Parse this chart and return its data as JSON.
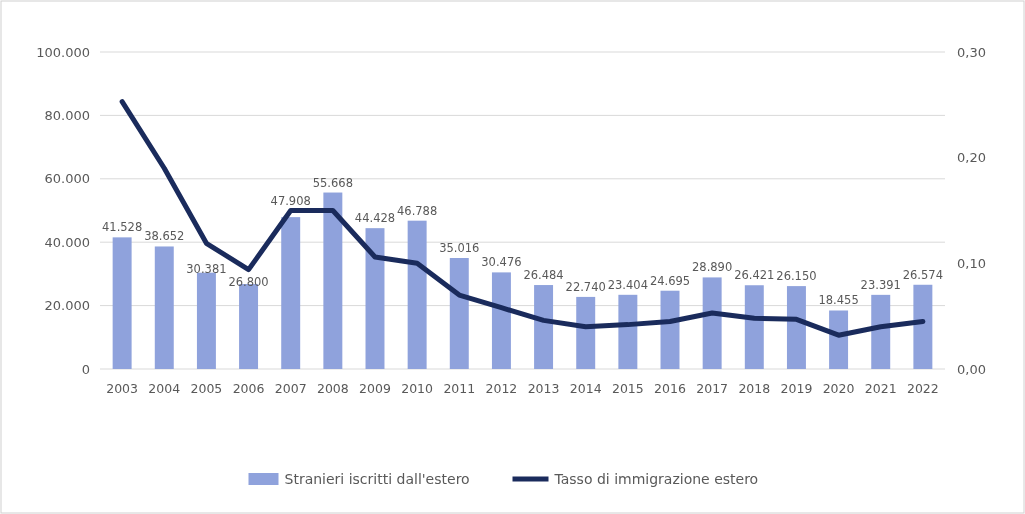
{
  "chart_data": {
    "type": "bar",
    "categories": [
      "2003",
      "2004",
      "2005",
      "2006",
      "2007",
      "2008",
      "2009",
      "2010",
      "2011",
      "2012",
      "2013",
      "2014",
      "2015",
      "2016",
      "2017",
      "2018",
      "2019",
      "2020",
      "2021",
      "2022"
    ],
    "series": [
      {
        "name": "Stranieri iscritti dall'estero",
        "color": "#8fa2dc",
        "values": [
          41528,
          38652,
          30381,
          26800,
          47908,
          55668,
          44428,
          46788,
          35016,
          30476,
          26484,
          22740,
          23404,
          24695,
          28890,
          26421,
          26150,
          18455,
          23391,
          26574
        ],
        "value_labels": [
          "41.528",
          "38.652",
          "30.381",
          "26.800",
          "47.908",
          "55.668",
          "44.428",
          "46.788",
          "35.016",
          "30.476",
          "26.484",
          "22.740",
          "23.404",
          "24.695",
          "28.890",
          "26.421",
          "26.150",
          "18.455",
          "23.391",
          "26.574"
        ]
      },
      {
        "name": "Tasso di immigrazione estero",
        "type": "line",
        "axis": "y2",
        "color": "#1a2b5c",
        "values": [
          0.253,
          0.19,
          0.119,
          0.094,
          0.15,
          0.15,
          0.106,
          0.1,
          0.07,
          0.058,
          0.046,
          0.04,
          0.042,
          0.045,
          0.053,
          0.048,
          0.047,
          0.032,
          0.04,
          0.045
        ]
      }
    ],
    "ylim": [
      0,
      100000
    ],
    "yticks": [
      {
        "value": 0,
        "label": "0"
      },
      {
        "value": 20000,
        "label": "20.000"
      },
      {
        "value": 40000,
        "label": "40.000"
      },
      {
        "value": 60000,
        "label": "60.000"
      },
      {
        "value": 80000,
        "label": "80.000"
      },
      {
        "value": 100000,
        "label": "100.000"
      }
    ],
    "y2lim": [
      0,
      0.3
    ],
    "y2ticks": [
      {
        "value": 0,
        "label": "0,00"
      },
      {
        "value": 0.1,
        "label": "0,10"
      },
      {
        "value": 0.2,
        "label": "0,20"
      },
      {
        "value": 0.3,
        "label": "0,30"
      }
    ],
    "grid": "y",
    "legend": "bottom"
  }
}
